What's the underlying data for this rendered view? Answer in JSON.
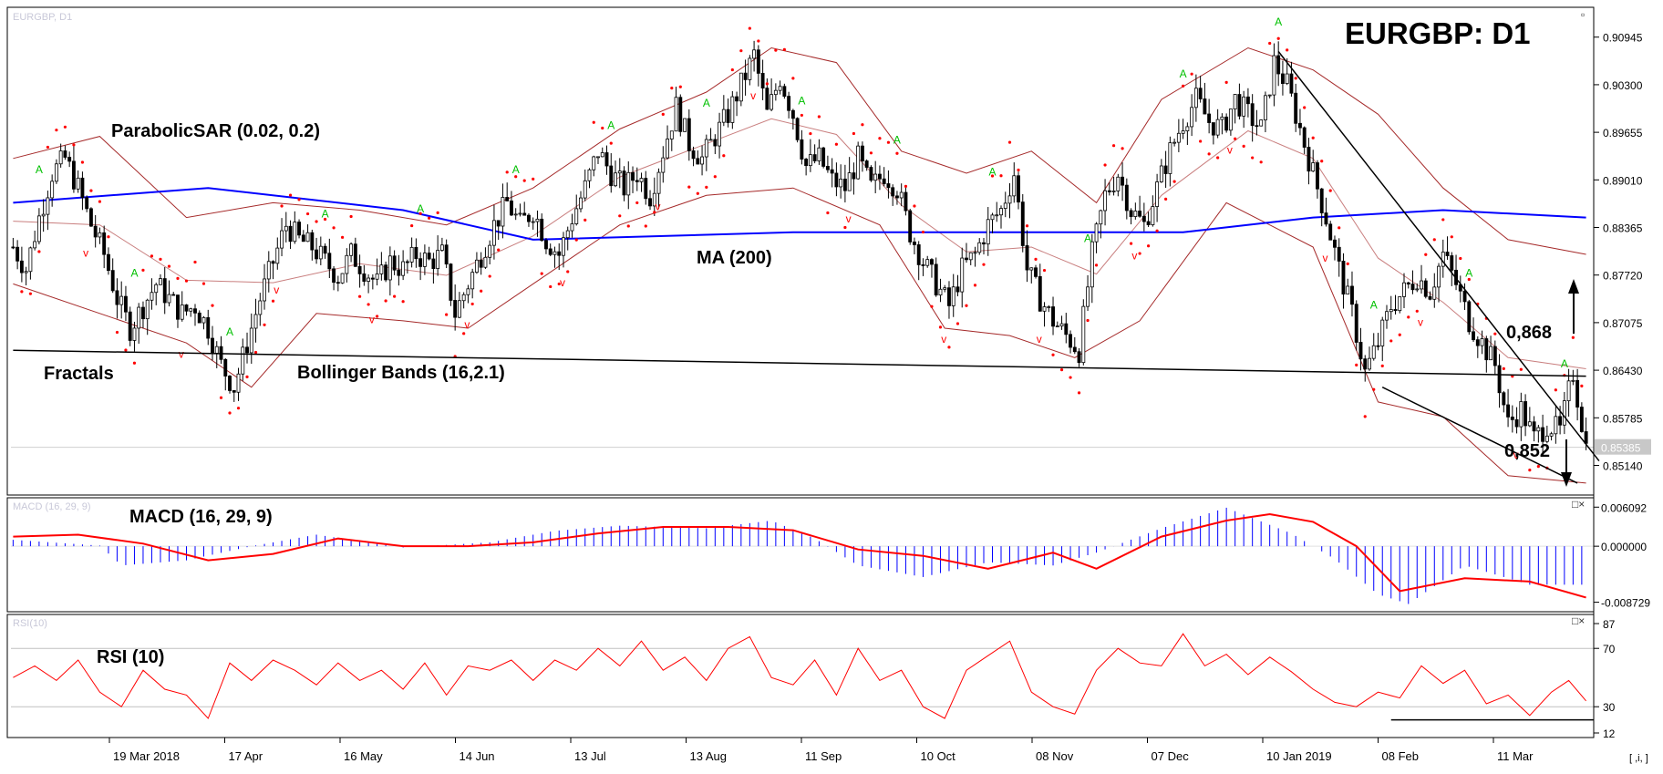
{
  "title": "EURGBP: D1",
  "panels": {
    "main": {
      "top_label": "EURGBP, D1",
      "close_icon": "▫"
    },
    "macd": {
      "top_label": "MACD (16, 29, 9)",
      "close_icons": "□×"
    },
    "rsi": {
      "top_label": "RSI(10)",
      "close_icons": "□×"
    }
  },
  "annotations": {
    "parabolic": "ParabolicSAR (0.02, 0.2)",
    "fractals": "Fractals",
    "bollinger": "Bollinger Bands (16,2.1)",
    "ma": "MA (200)",
    "macd": "MACD (16, 29, 9)",
    "rsi": "RSI (10)",
    "level_up": "0,868",
    "level_down": "0,852"
  },
  "price_axis": [
    "0.90945",
    "0.90300",
    "0.89655",
    "0.89010",
    "0.88365",
    "0.87720",
    "0.87075",
    "0.86430",
    "0.85785",
    "0.85140"
  ],
  "current_price": "0.85385",
  "macd_axis": [
    "0.006092",
    "0.000000",
    "-0.008729"
  ],
  "rsi_axis": [
    "87",
    "70",
    "30",
    "12"
  ],
  "date_axis": [
    "19 Mar 2018",
    "17 Apr",
    "16 May",
    "14 Jun",
    "13 Jul",
    "13 Aug",
    "11 Sep",
    "10 Oct",
    "08 Nov",
    "07 Dec",
    "10 Jan 2019",
    "08 Feb",
    "11 Mar"
  ],
  "corner_icon": "[ ,i, ]",
  "colors": {
    "bull": "#ffffff",
    "bear": "#000000",
    "sar": "#ff0000",
    "bands": "#a52a2a",
    "ma": "#0000ff",
    "fractal_up": "#00c000",
    "fractal_down": "#ff0000",
    "macd_hist": "#0000ff",
    "macd_signal": "#ff0000",
    "rsi": "#ff0000"
  },
  "chart_data": {
    "type": "candlestick",
    "symbol": "EURGBP",
    "timeframe": "D1",
    "ylim": [
      0.848,
      0.913
    ],
    "ma_period": 200,
    "bands": {
      "period": 16,
      "deviation": 2.1
    },
    "sar": {
      "step": 0.02,
      "max": 0.2
    },
    "macd": {
      "fast": 16,
      "slow": 29,
      "signal": 9,
      "ylim": [
        -0.0095,
        0.0067
      ]
    },
    "rsi": {
      "period": 10,
      "ylim": [
        12,
        87
      ],
      "levels": [
        70,
        30
      ]
    },
    "series": {
      "close_path": [
        [
          0,
          0.881
        ],
        [
          3,
          0.878
        ],
        [
          6,
          0.885
        ],
        [
          9,
          0.891
        ],
        [
          12,
          0.893
        ],
        [
          15,
          0.889
        ],
        [
          18,
          0.884
        ],
        [
          21,
          0.88
        ],
        [
          24,
          0.874
        ],
        [
          27,
          0.87
        ],
        [
          30,
          0.873
        ],
        [
          33,
          0.876
        ],
        [
          36,
          0.874
        ],
        [
          39,
          0.872
        ],
        [
          42,
          0.873
        ],
        [
          45,
          0.87
        ],
        [
          48,
          0.865
        ],
        [
          51,
          0.862
        ],
        [
          54,
          0.868
        ],
        [
          57,
          0.874
        ],
        [
          60,
          0.879
        ],
        [
          63,
          0.884
        ],
        [
          66,
          0.882
        ],
        [
          69,
          0.881
        ],
        [
          72,
          0.879
        ],
        [
          75,
          0.877
        ],
        [
          78,
          0.88
        ],
        [
          81,
          0.878
        ],
        [
          84,
          0.876
        ],
        [
          87,
          0.879
        ],
        [
          90,
          0.878
        ],
        [
          93,
          0.88
        ],
        [
          96,
          0.879
        ],
        [
          99,
          0.88
        ],
        [
          102,
          0.872
        ],
        [
          105,
          0.876
        ],
        [
          108,
          0.88
        ],
        [
          111,
          0.884
        ],
        [
          114,
          0.887
        ],
        [
          117,
          0.884
        ],
        [
          120,
          0.886
        ],
        [
          123,
          0.882
        ],
        [
          126,
          0.88
        ],
        [
          129,
          0.885
        ],
        [
          132,
          0.889
        ],
        [
          135,
          0.894
        ],
        [
          138,
          0.891
        ],
        [
          141,
          0.889
        ],
        [
          144,
          0.891
        ],
        [
          147,
          0.888
        ],
        [
          150,
          0.894
        ],
        [
          153,
          0.9
        ],
        [
          156,
          0.895
        ],
        [
          159,
          0.893
        ],
        [
          162,
          0.896
        ],
        [
          165,
          0.899
        ],
        [
          168,
          0.903
        ],
        [
          171,
          0.907
        ],
        [
          174,
          0.899
        ],
        [
          177,
          0.904
        ],
        [
          180,
          0.899
        ],
        [
          183,
          0.892
        ],
        [
          186,
          0.893
        ],
        [
          189,
          0.89
        ],
        [
          192,
          0.889
        ],
        [
          195,
          0.893
        ],
        [
          198,
          0.889
        ],
        [
          201,
          0.891
        ],
        [
          204,
          0.889
        ],
        [
          207,
          0.883
        ],
        [
          210,
          0.879
        ],
        [
          213,
          0.876
        ],
        [
          216,
          0.873
        ],
        [
          219,
          0.878
        ],
        [
          222,
          0.88
        ],
        [
          225,
          0.884
        ],
        [
          228,
          0.886
        ],
        [
          231,
          0.891
        ],
        [
          234,
          0.878
        ],
        [
          237,
          0.874
        ],
        [
          240,
          0.871
        ],
        [
          243,
          0.869
        ],
        [
          246,
          0.867
        ],
        [
          249,
          0.88
        ],
        [
          252,
          0.888
        ],
        [
          255,
          0.891
        ],
        [
          258,
          0.886
        ],
        [
          261,
          0.884
        ],
        [
          264,
          0.889
        ],
        [
          267,
          0.894
        ],
        [
          270,
          0.898
        ],
        [
          273,
          0.901
        ],
        [
          276,
          0.898
        ],
        [
          279,
          0.897
        ],
        [
          282,
          0.901
        ],
        [
          285,
          0.899
        ],
        [
          288,
          0.897
        ],
        [
          291,
          0.906
        ],
        [
          294,
          0.903
        ],
        [
          297,
          0.897
        ],
        [
          300,
          0.891
        ],
        [
          303,
          0.885
        ],
        [
          306,
          0.878
        ],
        [
          309,
          0.872
        ],
        [
          312,
          0.864
        ],
        [
          315,
          0.868
        ],
        [
          318,
          0.873
        ],
        [
          321,
          0.875
        ],
        [
          324,
          0.877
        ],
        [
          327,
          0.875
        ],
        [
          330,
          0.88
        ],
        [
          333,
          0.876
        ],
        [
          336,
          0.871
        ],
        [
          339,
          0.868
        ],
        [
          342,
          0.865
        ],
        [
          345,
          0.857
        ],
        [
          348,
          0.859
        ],
        [
          351,
          0.855
        ],
        [
          354,
          0.857
        ],
        [
          357,
          0.856
        ],
        [
          360,
          0.864
        ],
        [
          363,
          0.854
        ]
      ],
      "ma200": [
        [
          0,
          0.887
        ],
        [
          45,
          0.889
        ],
        [
          90,
          0.886
        ],
        [
          120,
          0.882
        ],
        [
          180,
          0.883
        ],
        [
          240,
          0.883
        ],
        [
          270,
          0.883
        ],
        [
          300,
          0.885
        ],
        [
          330,
          0.886
        ],
        [
          363,
          0.885
        ]
      ],
      "bb_upper": [
        [
          0,
          0.893
        ],
        [
          20,
          0.896
        ],
        [
          40,
          0.885
        ],
        [
          60,
          0.887
        ],
        [
          80,
          0.886
        ],
        [
          100,
          0.884
        ],
        [
          120,
          0.889
        ],
        [
          140,
          0.897
        ],
        [
          160,
          0.902
        ],
        [
          175,
          0.908
        ],
        [
          190,
          0.906
        ],
        [
          205,
          0.894
        ],
        [
          220,
          0.891
        ],
        [
          235,
          0.894
        ],
        [
          250,
          0.887
        ],
        [
          265,
          0.901
        ],
        [
          285,
          0.908
        ],
        [
          300,
          0.905
        ],
        [
          315,
          0.899
        ],
        [
          330,
          0.889
        ],
        [
          345,
          0.882
        ],
        [
          363,
          0.88
        ]
      ],
      "bb_lower": [
        [
          0,
          0.876
        ],
        [
          20,
          0.872
        ],
        [
          40,
          0.868
        ],
        [
          55,
          0.862
        ],
        [
          70,
          0.872
        ],
        [
          90,
          0.871
        ],
        [
          105,
          0.87
        ],
        [
          120,
          0.876
        ],
        [
          140,
          0.884
        ],
        [
          160,
          0.888
        ],
        [
          180,
          0.889
        ],
        [
          200,
          0.884
        ],
        [
          215,
          0.87
        ],
        [
          230,
          0.869
        ],
        [
          245,
          0.866
        ],
        [
          260,
          0.871
        ],
        [
          280,
          0.887
        ],
        [
          300,
          0.881
        ],
        [
          315,
          0.86
        ],
        [
          330,
          0.858
        ],
        [
          345,
          0.85
        ],
        [
          363,
          0.849
        ]
      ]
    },
    "trendlines": [
      {
        "name": "support",
        "points": [
          [
            0,
            0.867
          ],
          [
            363,
            0.8635
          ]
        ]
      },
      {
        "name": "channel_upper",
        "points": [
          [
            292,
            0.9075
          ],
          [
            366,
            0.852
          ]
        ]
      },
      {
        "name": "channel_lower",
        "points": [
          [
            316,
            0.862
          ],
          [
            361,
            0.849
          ]
        ]
      }
    ],
    "levels": {
      "resistance": 0.868,
      "support": 0.852
    },
    "macd_line": [
      [
        0,
        0.0015
      ],
      [
        15,
        0.0018
      ],
      [
        30,
        0.0004
      ],
      [
        45,
        -0.0022
      ],
      [
        60,
        -0.0012
      ],
      [
        75,
        0.0012
      ],
      [
        90,
        0.0
      ],
      [
        105,
        0.0
      ],
      [
        120,
        0.0006
      ],
      [
        135,
        0.002
      ],
      [
        150,
        0.003
      ],
      [
        165,
        0.003
      ],
      [
        180,
        0.0025
      ],
      [
        195,
        -0.0005
      ],
      [
        210,
        -0.0015
      ],
      [
        225,
        -0.0035
      ],
      [
        240,
        -0.001
      ],
      [
        250,
        -0.0035
      ],
      [
        265,
        0.0015
      ],
      [
        280,
        0.004
      ],
      [
        290,
        0.005
      ],
      [
        300,
        0.0038
      ],
      [
        310,
        0.0
      ],
      [
        320,
        -0.007
      ],
      [
        335,
        -0.005
      ],
      [
        350,
        -0.0055
      ],
      [
        363,
        -0.008
      ]
    ],
    "macd_hist": [
      [
        0,
        0.001
      ],
      [
        20,
        0.0001
      ],
      [
        25,
        -0.003
      ],
      [
        40,
        -0.0022
      ],
      [
        55,
        0.0
      ],
      [
        70,
        0.0018
      ],
      [
        90,
        -0.0002
      ],
      [
        110,
        0.0006
      ],
      [
        125,
        0.0024
      ],
      [
        140,
        0.0032
      ],
      [
        160,
        0.0028
      ],
      [
        175,
        0.004
      ],
      [
        185,
        0.0012
      ],
      [
        195,
        -0.003
      ],
      [
        210,
        -0.0048
      ],
      [
        225,
        -0.0025
      ],
      [
        240,
        -0.003
      ],
      [
        250,
        -0.001
      ],
      [
        265,
        0.0028
      ],
      [
        280,
        0.006
      ],
      [
        295,
        0.002
      ],
      [
        305,
        -0.002
      ],
      [
        315,
        -0.0075
      ],
      [
        322,
        -0.009
      ],
      [
        335,
        -0.003
      ],
      [
        350,
        -0.006
      ],
      [
        363,
        -0.006
      ]
    ],
    "rsi_line": [
      [
        0,
        50
      ],
      [
        5,
        58
      ],
      [
        10,
        48
      ],
      [
        15,
        62
      ],
      [
        20,
        40
      ],
      [
        25,
        30
      ],
      [
        30,
        55
      ],
      [
        35,
        42
      ],
      [
        40,
        38
      ],
      [
        45,
        22
      ],
      [
        50,
        60
      ],
      [
        55,
        48
      ],
      [
        60,
        62
      ],
      [
        65,
        55
      ],
      [
        70,
        45
      ],
      [
        75,
        60
      ],
      [
        80,
        48
      ],
      [
        85,
        55
      ],
      [
        90,
        42
      ],
      [
        95,
        60
      ],
      [
        100,
        38
      ],
      [
        105,
        58
      ],
      [
        110,
        55
      ],
      [
        115,
        62
      ],
      [
        120,
        48
      ],
      [
        125,
        62
      ],
      [
        130,
        55
      ],
      [
        135,
        70
      ],
      [
        140,
        58
      ],
      [
        145,
        75
      ],
      [
        150,
        55
      ],
      [
        155,
        64
      ],
      [
        160,
        48
      ],
      [
        165,
        70
      ],
      [
        170,
        78
      ],
      [
        175,
        50
      ],
      [
        180,
        45
      ],
      [
        185,
        62
      ],
      [
        190,
        38
      ],
      [
        195,
        70
      ],
      [
        200,
        48
      ],
      [
        205,
        55
      ],
      [
        210,
        30
      ],
      [
        215,
        22
      ],
      [
        220,
        55
      ],
      [
        225,
        65
      ],
      [
        230,
        75
      ],
      [
        235,
        40
      ],
      [
        240,
        30
      ],
      [
        245,
        25
      ],
      [
        250,
        55
      ],
      [
        255,
        70
      ],
      [
        260,
        60
      ],
      [
        265,
        58
      ],
      [
        270,
        80
      ],
      [
        275,
        58
      ],
      [
        280,
        66
      ],
      [
        285,
        52
      ],
      [
        290,
        64
      ],
      [
        295,
        54
      ],
      [
        300,
        42
      ],
      [
        305,
        33
      ],
      [
        310,
        30
      ],
      [
        315,
        40
      ],
      [
        320,
        36
      ],
      [
        325,
        58
      ],
      [
        330,
        46
      ],
      [
        335,
        55
      ],
      [
        340,
        32
      ],
      [
        345,
        38
      ],
      [
        350,
        24
      ],
      [
        355,
        40
      ],
      [
        359,
        48
      ],
      [
        363,
        34
      ]
    ]
  }
}
